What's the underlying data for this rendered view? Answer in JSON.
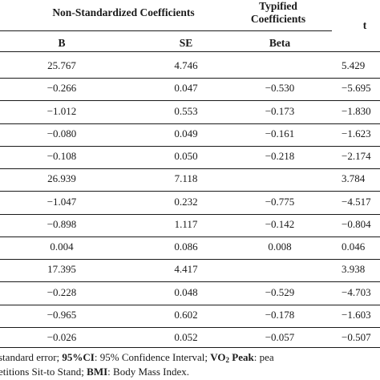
{
  "header": {
    "non_standardized": "Non-Standardized Coefficients",
    "typified_line1": "Typified",
    "typified_line2": "Coefficients",
    "col_b": "B",
    "col_se": "SE",
    "col_beta": "Beta",
    "col_t": "t"
  },
  "rows": [
    {
      "b": "25.767",
      "se": "4.746",
      "beta": "",
      "t": "5.429"
    },
    {
      "b": "−0.266",
      "se": "0.047",
      "beta": "−0.530",
      "t": "−5.695"
    },
    {
      "b": "−1.012",
      "se": "0.553",
      "beta": "−0.173",
      "t": "−1.830"
    },
    {
      "b": "−0.080",
      "se": "0.049",
      "beta": "−0.161",
      "t": "−1.623"
    },
    {
      "b": "−0.108",
      "se": "0.050",
      "beta": "−0.218",
      "t": "−2.174"
    },
    {
      "b": "26.939",
      "se": "7.118",
      "beta": "",
      "t": "3.784"
    },
    {
      "b": "−1.047",
      "se": "0.232",
      "beta": "−0.775",
      "t": "−4.517"
    },
    {
      "b": "−0.898",
      "se": "1.117",
      "beta": "−0.142",
      "t": "−0.804"
    },
    {
      "b": "0.004",
      "se": "0.086",
      "beta": "0.008",
      "t": "0.046"
    },
    {
      "b": "17.395",
      "se": "4.417",
      "beta": "",
      "t": "3.938"
    },
    {
      "b": "−0.228",
      "se": "0.048",
      "beta": "−0.529",
      "t": "−4.703"
    },
    {
      "b": "−0.965",
      "se": "0.602",
      "beta": "−0.178",
      "t": "−1.603"
    },
    {
      "b": "−0.026",
      "se": "0.052",
      "beta": "−0.057",
      "t": "−0.507"
    }
  ],
  "footnote": {
    "l1_a": "standard error; ",
    "l1_b_bold": "95%CI",
    "l1_c": ": 95% Confidence Interval; ",
    "l1_d_bold": "VO",
    "l1_d_sub": "2",
    "l1_e_bold": " Peak",
    "l1_f": ": pea",
    "l2_a": "etitions Sit-to Stand; ",
    "l2_b_bold": "BMI",
    "l2_c": ": Body Mass Index."
  }
}
